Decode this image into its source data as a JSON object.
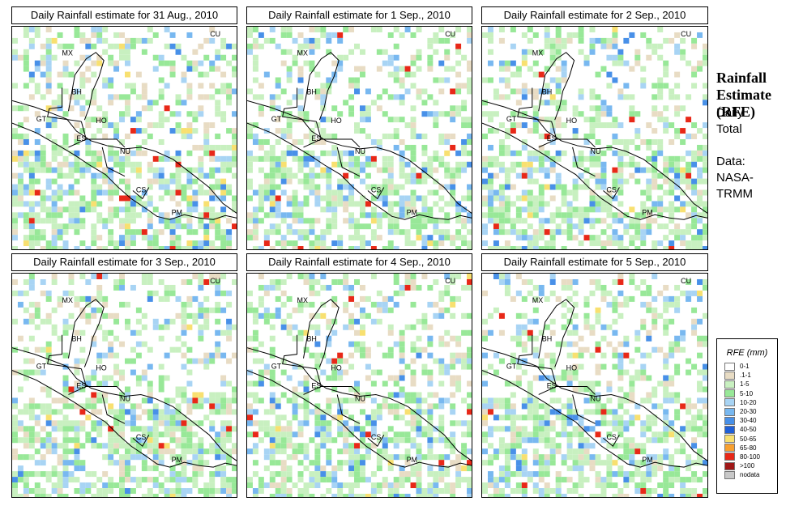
{
  "panels": [
    {
      "title": "Daily Rainfall estimate for  31 Aug., 2010"
    },
    {
      "title": "Daily Rainfall estimate for  1 Sep., 2010"
    },
    {
      "title": "Daily Rainfall estimate for  2 Sep., 2010"
    },
    {
      "title": "Daily Rainfall estimate for  3 Sep., 2010"
    },
    {
      "title": "Daily Rainfall estimate for  4 Sep., 2010"
    },
    {
      "title": "Daily Rainfall estimate for  5 Sep., 2010"
    }
  ],
  "country_labels": [
    "CU",
    "MX",
    "BH",
    "GT",
    "HO",
    "ES",
    "NU",
    "CS",
    "PM"
  ],
  "sidebar": {
    "title_lines": [
      "Rainfall",
      "Estimate",
      "(RFE)"
    ],
    "daily": "Daily",
    "total": "Total",
    "data_label": "Data:",
    "source_1": "NASA-",
    "source_2": "TRMM"
  },
  "legend": {
    "title": "RFE (mm)",
    "items": [
      {
        "label": "0-1",
        "color": "#ffffff"
      },
      {
        "label": ".1-1",
        "color": "#e8dcc4"
      },
      {
        "label": "1-5",
        "color": "#c8f0c0"
      },
      {
        "label": "5-10",
        "color": "#98e898"
      },
      {
        "label": "10-20",
        "color": "#a8d4f4"
      },
      {
        "label": "20-30",
        "color": "#78b8f0"
      },
      {
        "label": "30-40",
        "color": "#4890e8"
      },
      {
        "label": "40-50",
        "color": "#2060d8"
      },
      {
        "label": "50-65",
        "color": "#f8e070"
      },
      {
        "label": "65-80",
        "color": "#f8a030"
      },
      {
        "label": "80-100",
        "color": "#e82818"
      },
      {
        "label": ">100",
        "color": "#a01818"
      },
      {
        "label": "nodata",
        "color": "#c8c8c8"
      }
    ]
  }
}
